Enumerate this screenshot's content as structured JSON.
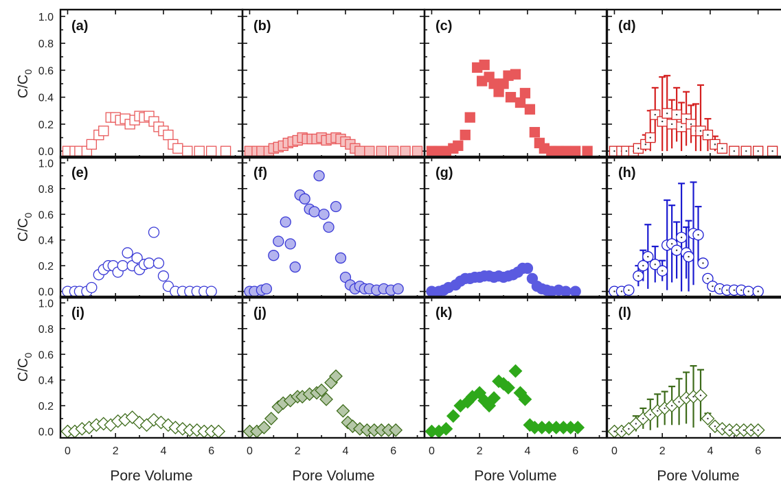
{
  "figure": {
    "xlabel": "Pore Volume",
    "ylabel": "C/C",
    "ylabel_sub": "0",
    "xticks": [
      0,
      2,
      4,
      6
    ],
    "yticks": [
      "0.0",
      "0.2",
      "0.4",
      "0.6",
      "0.8",
      "1.0"
    ]
  },
  "chart_data": [
    {
      "label": "(a)",
      "type": "scatter",
      "marker": "square",
      "fill": "open",
      "color": "#e8585a",
      "xlim": [
        -0.3,
        7.3
      ],
      "ylim": [
        -0.05,
        1.05
      ],
      "points": [
        [
          0,
          0
        ],
        [
          0.3,
          0
        ],
        [
          0.5,
          0
        ],
        [
          0.8,
          0
        ],
        [
          1.0,
          0.05
        ],
        [
          1.3,
          0.12
        ],
        [
          1.5,
          0.15
        ],
        [
          1.8,
          0.25
        ],
        [
          2.0,
          0.25
        ],
        [
          2.2,
          0.23
        ],
        [
          2.4,
          0.24
        ],
        [
          2.6,
          0.2
        ],
        [
          2.8,
          0.23
        ],
        [
          3.0,
          0.26
        ],
        [
          3.2,
          0.25
        ],
        [
          3.4,
          0.26
        ],
        [
          3.6,
          0.22
        ],
        [
          3.8,
          0.18
        ],
        [
          4.0,
          0.15
        ],
        [
          4.2,
          0.12
        ],
        [
          4.4,
          0.05
        ],
        [
          4.6,
          0.02
        ],
        [
          5.0,
          0
        ],
        [
          5.5,
          0
        ],
        [
          6.0,
          0
        ],
        [
          6.6,
          0
        ]
      ]
    },
    {
      "label": "(b)",
      "type": "scatter",
      "marker": "square",
      "fill": "light",
      "color": "#e8585a",
      "xlim": [
        -0.3,
        7.3
      ],
      "ylim": [
        -0.05,
        1.05
      ],
      "points": [
        [
          0,
          0
        ],
        [
          0.3,
          0
        ],
        [
          0.5,
          0
        ],
        [
          0.8,
          0
        ],
        [
          1.0,
          0.02
        ],
        [
          1.2,
          0.03
        ],
        [
          1.4,
          0.04
        ],
        [
          1.6,
          0.06
        ],
        [
          1.8,
          0.07
        ],
        [
          2.0,
          0.08
        ],
        [
          2.2,
          0.1
        ],
        [
          2.4,
          0.09
        ],
        [
          2.6,
          0.09
        ],
        [
          2.8,
          0.09
        ],
        [
          3.0,
          0.1
        ],
        [
          3.2,
          0.08
        ],
        [
          3.4,
          0.09
        ],
        [
          3.6,
          0.1
        ],
        [
          3.8,
          0.09
        ],
        [
          4.0,
          0.07
        ],
        [
          4.2,
          0.05
        ],
        [
          4.4,
          0.02
        ],
        [
          4.6,
          0
        ],
        [
          5.0,
          0
        ],
        [
          5.5,
          0
        ],
        [
          6.0,
          0
        ],
        [
          6.5,
          0
        ],
        [
          7.0,
          0
        ]
      ]
    },
    {
      "label": "(c)",
      "type": "scatter",
      "marker": "square",
      "fill": "solid",
      "color": "#e8585a",
      "xlim": [
        -0.3,
        7.3
      ],
      "ylim": [
        -0.05,
        1.05
      ],
      "points": [
        [
          0,
          0
        ],
        [
          0.3,
          0
        ],
        [
          0.6,
          0
        ],
        [
          0.9,
          0.02
        ],
        [
          1.1,
          0.04
        ],
        [
          1.4,
          0.12
        ],
        [
          1.6,
          0.25
        ],
        [
          1.9,
          0.62
        ],
        [
          2.1,
          0.52
        ],
        [
          2.2,
          0.64
        ],
        [
          2.4,
          0.55
        ],
        [
          2.6,
          0.5
        ],
        [
          2.8,
          0.44
        ],
        [
          3.0,
          0.5
        ],
        [
          3.2,
          0.56
        ],
        [
          3.3,
          0.4
        ],
        [
          3.5,
          0.57
        ],
        [
          3.7,
          0.36
        ],
        [
          3.9,
          0.43
        ],
        [
          4.1,
          0.31
        ],
        [
          4.3,
          0.14
        ],
        [
          4.5,
          0.06
        ],
        [
          4.7,
          0.02
        ],
        [
          5.0,
          0
        ],
        [
          5.3,
          0
        ],
        [
          5.6,
          0
        ],
        [
          6.0,
          0
        ],
        [
          6.5,
          0
        ]
      ]
    },
    {
      "label": "(d)",
      "type": "scatter",
      "marker": "square",
      "fill": "open-dot",
      "color": "#d42020",
      "xlim": [
        -0.3,
        7.3
      ],
      "ylim": [
        -0.05,
        1.05
      ],
      "errorbars": true,
      "points": [
        [
          0,
          0,
          0
        ],
        [
          0.3,
          0,
          0
        ],
        [
          0.5,
          0,
          0
        ],
        [
          0.8,
          0,
          0
        ],
        [
          1.0,
          0.02,
          0.02
        ],
        [
          1.3,
          0.05,
          0.07
        ],
        [
          1.5,
          0.1,
          0.2
        ],
        [
          1.7,
          0.27,
          0.2
        ],
        [
          2.0,
          0.22,
          0.33
        ],
        [
          2.2,
          0.28,
          0.28
        ],
        [
          2.4,
          0.2,
          0.18
        ],
        [
          2.6,
          0.27,
          0.2
        ],
        [
          2.8,
          0.18,
          0.18
        ],
        [
          3.0,
          0.24,
          0.2
        ],
        [
          3.2,
          0.2,
          0.14
        ],
        [
          3.4,
          0.15,
          0.2
        ],
        [
          3.6,
          0.15,
          0.34
        ],
        [
          3.9,
          0.12,
          0.12
        ],
        [
          4.2,
          0.05,
          0.06
        ],
        [
          4.5,
          0.02,
          0.03
        ],
        [
          5.0,
          0,
          0
        ],
        [
          5.5,
          0,
          0
        ],
        [
          6.0,
          0,
          0
        ],
        [
          6.6,
          0,
          0
        ]
      ]
    },
    {
      "label": "(e)",
      "type": "scatter",
      "marker": "circle",
      "fill": "open",
      "color": "#3a3ad6",
      "xlim": [
        -0.3,
        7.3
      ],
      "ylim": [
        -0.05,
        1.05
      ],
      "points": [
        [
          0,
          0
        ],
        [
          0.3,
          0
        ],
        [
          0.5,
          0
        ],
        [
          0.8,
          0
        ],
        [
          1.0,
          0.03
        ],
        [
          1.3,
          0.13
        ],
        [
          1.5,
          0.17
        ],
        [
          1.7,
          0.2
        ],
        [
          1.9,
          0.2
        ],
        [
          2.1,
          0.15
        ],
        [
          2.3,
          0.2
        ],
        [
          2.5,
          0.3
        ],
        [
          2.7,
          0.2
        ],
        [
          2.9,
          0.26
        ],
        [
          3.0,
          0.17
        ],
        [
          3.2,
          0.21
        ],
        [
          3.4,
          0.22
        ],
        [
          3.6,
          0.46
        ],
        [
          3.8,
          0.22
        ],
        [
          4.0,
          0.12
        ],
        [
          4.2,
          0.04
        ],
        [
          4.5,
          0
        ],
        [
          4.8,
          0
        ],
        [
          5.1,
          0
        ],
        [
          5.4,
          0
        ],
        [
          5.7,
          0
        ],
        [
          6.0,
          0
        ]
      ]
    },
    {
      "label": "(f)",
      "type": "scatter",
      "marker": "circle",
      "fill": "light",
      "color": "#3a3ad6",
      "xlim": [
        -0.3,
        7.3
      ],
      "ylim": [
        -0.05,
        1.05
      ],
      "points": [
        [
          0,
          0
        ],
        [
          0.2,
          0
        ],
        [
          0.5,
          0.01
        ],
        [
          0.7,
          0.02
        ],
        [
          1.0,
          0.28
        ],
        [
          1.2,
          0.39
        ],
        [
          1.5,
          0.54
        ],
        [
          1.7,
          0.37
        ],
        [
          1.9,
          0.19
        ],
        [
          2.1,
          0.75
        ],
        [
          2.3,
          0.72
        ],
        [
          2.5,
          0.64
        ],
        [
          2.7,
          0.62
        ],
        [
          2.9,
          0.9
        ],
        [
          3.1,
          0.6
        ],
        [
          3.3,
          0.5
        ],
        [
          3.6,
          0.66
        ],
        [
          3.8,
          0.26
        ],
        [
          4.0,
          0.11
        ],
        [
          4.2,
          0.05
        ],
        [
          4.4,
          0.02
        ],
        [
          4.6,
          0.04
        ],
        [
          4.8,
          0.02
        ],
        [
          5.0,
          0.02
        ],
        [
          5.3,
          0.01
        ],
        [
          5.6,
          0.02
        ],
        [
          5.9,
          0.01
        ],
        [
          6.2,
          0.02
        ]
      ]
    },
    {
      "label": "(g)",
      "type": "scatter",
      "marker": "circle",
      "fill": "solid",
      "color": "#5a5ae0",
      "xlim": [
        -0.3,
        7.3
      ],
      "ylim": [
        -0.05,
        1.05
      ],
      "points": [
        [
          0,
          0
        ],
        [
          0.3,
          0
        ],
        [
          0.5,
          0.01
        ],
        [
          0.7,
          0.03
        ],
        [
          1.0,
          0.05
        ],
        [
          1.2,
          0.08
        ],
        [
          1.4,
          0.1
        ],
        [
          1.6,
          0.1
        ],
        [
          1.8,
          0.11
        ],
        [
          2.0,
          0.11
        ],
        [
          2.2,
          0.12
        ],
        [
          2.4,
          0.12
        ],
        [
          2.6,
          0.11
        ],
        [
          2.8,
          0.12
        ],
        [
          3.0,
          0.11
        ],
        [
          3.2,
          0.12
        ],
        [
          3.4,
          0.13
        ],
        [
          3.6,
          0.15
        ],
        [
          3.8,
          0.18
        ],
        [
          4.0,
          0.18
        ],
        [
          4.2,
          0.1
        ],
        [
          4.4,
          0.04
        ],
        [
          4.6,
          0.02
        ],
        [
          4.8,
          0.01
        ],
        [
          5.0,
          0
        ],
        [
          5.3,
          0.01
        ],
        [
          5.6,
          0
        ],
        [
          6.0,
          0
        ]
      ]
    },
    {
      "label": "(h)",
      "type": "scatter",
      "marker": "circle",
      "fill": "open-dot",
      "color": "#1a1ad0",
      "xlim": [
        -0.3,
        7.3
      ],
      "ylim": [
        -0.05,
        1.05
      ],
      "errorbars": true,
      "points": [
        [
          0,
          0,
          0
        ],
        [
          0.3,
          0,
          0
        ],
        [
          0.6,
          0.01,
          0
        ],
        [
          1.0,
          0.12,
          0.08
        ],
        [
          1.2,
          0.2,
          0.12
        ],
        [
          1.4,
          0.27,
          0.25
        ],
        [
          1.7,
          0.21,
          0.14
        ],
        [
          2.0,
          0.16,
          0.08
        ],
        [
          2.2,
          0.36,
          0.35
        ],
        [
          2.4,
          0.37,
          0.3
        ],
        [
          2.6,
          0.32,
          0.22
        ],
        [
          2.8,
          0.42,
          0.42
        ],
        [
          3.0,
          0.3,
          0.2
        ],
        [
          3.1,
          0.27,
          0.28
        ],
        [
          3.3,
          0.45,
          0.4
        ],
        [
          3.5,
          0.44,
          0.22
        ],
        [
          3.7,
          0.22,
          0.02
        ],
        [
          3.9,
          0.1,
          0.02
        ],
        [
          4.1,
          0.04,
          0
        ],
        [
          4.4,
          0.02,
          0
        ],
        [
          4.7,
          0.01,
          0
        ],
        [
          5.0,
          0.01,
          0
        ],
        [
          5.3,
          0.01,
          0
        ],
        [
          5.6,
          0,
          0
        ],
        [
          6.0,
          0,
          0
        ]
      ]
    },
    {
      "label": "(i)",
      "type": "scatter",
      "marker": "diamond",
      "fill": "open",
      "color": "#3d6b1a",
      "xlim": [
        -0.3,
        7.3
      ],
      "ylim": [
        -0.05,
        1.05
      ],
      "points": [
        [
          0,
          0
        ],
        [
          0.3,
          0
        ],
        [
          0.6,
          0.02
        ],
        [
          0.9,
          0.03
        ],
        [
          1.2,
          0.05
        ],
        [
          1.5,
          0.06
        ],
        [
          1.8,
          0.05
        ],
        [
          2.1,
          0.08
        ],
        [
          2.4,
          0.09
        ],
        [
          2.7,
          0.11
        ],
        [
          3.0,
          0.07
        ],
        [
          3.3,
          0.05
        ],
        [
          3.6,
          0.09
        ],
        [
          3.9,
          0.07
        ],
        [
          4.2,
          0.05
        ],
        [
          4.5,
          0.03
        ],
        [
          4.8,
          0.02
        ],
        [
          5.1,
          0.01
        ],
        [
          5.4,
          0.01
        ],
        [
          5.7,
          0
        ],
        [
          6.0,
          0
        ],
        [
          6.3,
          0
        ]
      ]
    },
    {
      "label": "(j)",
      "type": "scatter",
      "marker": "diamond",
      "fill": "light",
      "color": "#3d6b1a",
      "xlim": [
        -0.3,
        7.3
      ],
      "ylim": [
        -0.05,
        1.05
      ],
      "points": [
        [
          0,
          0
        ],
        [
          0.3,
          0
        ],
        [
          0.6,
          0.03
        ],
        [
          0.9,
          0.1
        ],
        [
          1.2,
          0.19
        ],
        [
          1.4,
          0.22
        ],
        [
          1.7,
          0.24
        ],
        [
          2.0,
          0.27
        ],
        [
          2.2,
          0.27
        ],
        [
          2.5,
          0.29
        ],
        [
          2.8,
          0.3
        ],
        [
          3.0,
          0.32
        ],
        [
          3.2,
          0.25
        ],
        [
          3.4,
          0.38
        ],
        [
          3.6,
          0.43
        ],
        [
          3.9,
          0.16
        ],
        [
          4.1,
          0.07
        ],
        [
          4.3,
          0.04
        ],
        [
          4.6,
          0.02
        ],
        [
          4.9,
          0.01
        ],
        [
          5.2,
          0.01
        ],
        [
          5.5,
          0.01
        ],
        [
          5.8,
          0.01
        ],
        [
          6.1,
          0.01
        ]
      ]
    },
    {
      "label": "(k)",
      "type": "scatter",
      "marker": "diamond",
      "fill": "solid",
      "color": "#2ea81a",
      "xlim": [
        -0.3,
        7.3
      ],
      "ylim": [
        -0.05,
        1.05
      ],
      "points": [
        [
          0,
          0
        ],
        [
          0.3,
          0
        ],
        [
          0.6,
          0.02
        ],
        [
          0.9,
          0.12
        ],
        [
          1.2,
          0.2
        ],
        [
          1.5,
          0.23
        ],
        [
          1.7,
          0.27
        ],
        [
          2.0,
          0.3
        ],
        [
          2.2,
          0.24
        ],
        [
          2.4,
          0.2
        ],
        [
          2.6,
          0.26
        ],
        [
          2.8,
          0.39
        ],
        [
          3.0,
          0.37
        ],
        [
          3.2,
          0.34
        ],
        [
          3.5,
          0.47
        ],
        [
          3.7,
          0.3
        ],
        [
          3.9,
          0.25
        ],
        [
          4.1,
          0.05
        ],
        [
          4.3,
          0.03
        ],
        [
          4.6,
          0.03
        ],
        [
          4.9,
          0.03
        ],
        [
          5.2,
          0.03
        ],
        [
          5.5,
          0.03
        ],
        [
          5.8,
          0.03
        ],
        [
          6.1,
          0.03
        ]
      ]
    },
    {
      "label": "(l)",
      "type": "scatter",
      "marker": "diamond",
      "fill": "open-dot",
      "color": "#3d6b1a",
      "xlim": [
        -0.3,
        7.3
      ],
      "ylim": [
        -0.05,
        1.05
      ],
      "errorbars": true,
      "points": [
        [
          0,
          0,
          0
        ],
        [
          0.3,
          0,
          0
        ],
        [
          0.6,
          0.02,
          0
        ],
        [
          0.9,
          0.06,
          0.06
        ],
        [
          1.2,
          0.1,
          0.08
        ],
        [
          1.5,
          0.13,
          0.12
        ],
        [
          1.8,
          0.16,
          0.13
        ],
        [
          2.1,
          0.18,
          0.13
        ],
        [
          2.4,
          0.2,
          0.15
        ],
        [
          2.7,
          0.23,
          0.18
        ],
        [
          3.0,
          0.26,
          0.2
        ],
        [
          3.3,
          0.27,
          0.24
        ],
        [
          3.6,
          0.28,
          0.2
        ],
        [
          3.9,
          0.1,
          0.04
        ],
        [
          4.2,
          0.04,
          0.02
        ],
        [
          4.5,
          0.02,
          0
        ],
        [
          4.8,
          0.01,
          0
        ],
        [
          5.1,
          0.01,
          0
        ],
        [
          5.4,
          0.01,
          0
        ],
        [
          5.7,
          0.01,
          0
        ],
        [
          6.0,
          0.01,
          0
        ]
      ]
    }
  ]
}
